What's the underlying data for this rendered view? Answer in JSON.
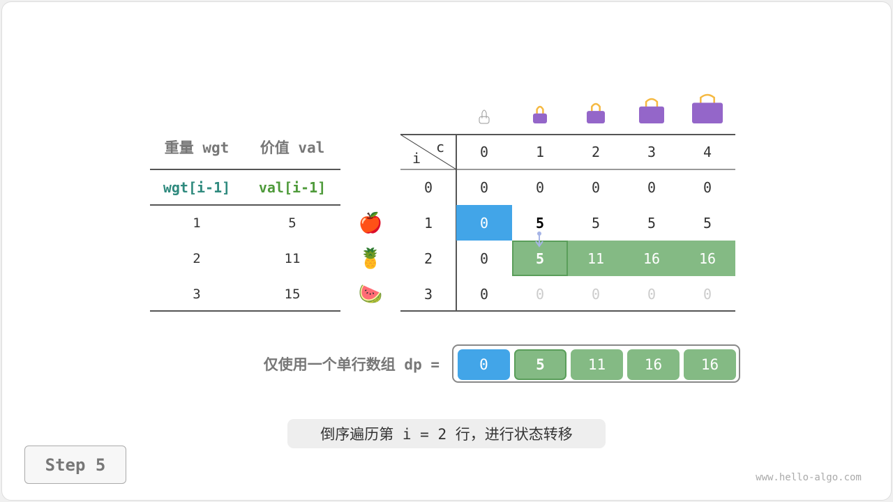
{
  "left_table": {
    "headers": [
      "重量 wgt",
      "价值 val"
    ],
    "subheaders": [
      "wgt[i-1]",
      "val[i-1]"
    ],
    "rows": [
      [
        "1",
        "5"
      ],
      [
        "2",
        "11"
      ],
      [
        "3",
        "15"
      ]
    ],
    "item_icons": [
      "apple-icon",
      "pineapple-icon",
      "watermelon-icon"
    ]
  },
  "dp_table": {
    "row_axis_label": "i",
    "col_axis_label": "c",
    "col_headers": [
      "0",
      "1",
      "2",
      "3",
      "4"
    ],
    "row_headers": [
      "0",
      "1",
      "2",
      "3"
    ],
    "rows": [
      [
        "0",
        "0",
        "0",
        "0",
        "0"
      ],
      [
        "0",
        "5",
        "5",
        "5",
        "5"
      ],
      [
        "0",
        "5",
        "11",
        "16",
        "16"
      ],
      [
        "0",
        "0",
        "0",
        "0",
        "0"
      ]
    ],
    "bag_icons": [
      "bag-icon-0",
      "bag-icon-1",
      "bag-icon-2",
      "bag-icon-3",
      "bag-icon-4"
    ]
  },
  "dp_array": {
    "label": "仅使用一个单行数组 dp =",
    "values": [
      "0",
      "5",
      "11",
      "16",
      "16"
    ]
  },
  "caption": "倒序遍历第 i = 2 行，进行状态转移",
  "step_label": "Step 5",
  "watermark": "www.hello-algo.com",
  "colors": {
    "blue": "#42a5e8",
    "green": "#84ba84",
    "green_border": "#5a9e5a",
    "bag": "#9466c9",
    "handle": "#f5b942"
  }
}
